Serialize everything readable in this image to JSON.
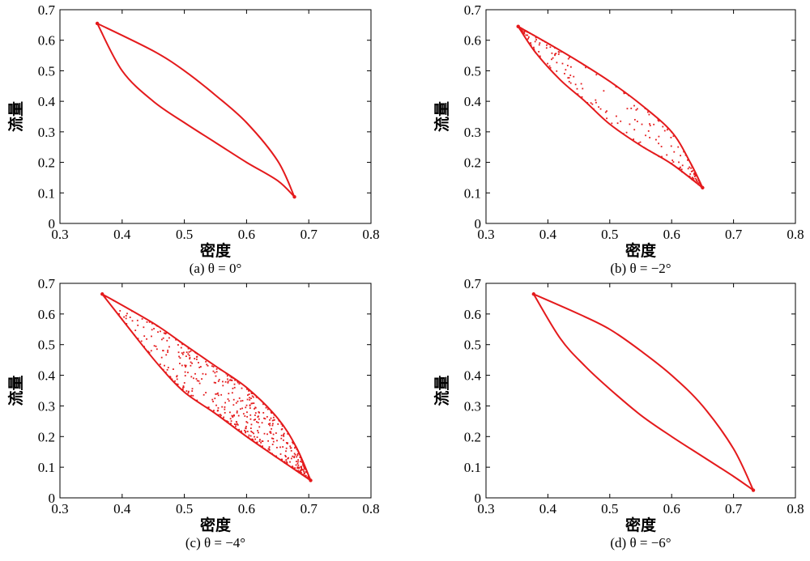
{
  "colors": {
    "series": "#e41a1c",
    "axis": "#000000",
    "background": "#ffffff"
  },
  "chart_data": [
    {
      "type": "scatter",
      "caption": "(a) θ = 0°",
      "xlabel": "密度",
      "ylabel": "流量",
      "xlim": [
        0.3,
        0.8
      ],
      "ylim": [
        0,
        0.7
      ],
      "xticks": [
        "0.3",
        "0.4",
        "0.5",
        "0.6",
        "0.7",
        "0.8"
      ],
      "yticks": [
        "0",
        "0.1",
        "0.2",
        "0.3",
        "0.4",
        "0.5",
        "0.6",
        "0.7"
      ],
      "grid": false,
      "shape": "closed lens-shaped loop",
      "loop": {
        "start": [
          0.36,
          0.655
        ],
        "end": [
          0.677,
          0.087
        ],
        "upper_branch": [
          [
            0.36,
            0.655
          ],
          [
            0.45,
            0.565
          ],
          [
            0.5,
            0.5
          ],
          [
            0.55,
            0.42
          ],
          [
            0.6,
            0.33
          ],
          [
            0.65,
            0.205
          ],
          [
            0.677,
            0.087
          ]
        ],
        "lower_branch": [
          [
            0.36,
            0.655
          ],
          [
            0.4,
            0.5
          ],
          [
            0.45,
            0.4
          ],
          [
            0.5,
            0.33
          ],
          [
            0.55,
            0.265
          ],
          [
            0.6,
            0.2
          ],
          [
            0.65,
            0.14
          ],
          [
            0.677,
            0.087
          ]
        ]
      },
      "interior_scatter": "none"
    },
    {
      "type": "scatter",
      "caption": "(b) θ = −2°",
      "xlabel": "密度",
      "ylabel": "流量",
      "xlim": [
        0.3,
        0.8
      ],
      "ylim": [
        0,
        0.7
      ],
      "xticks": [
        "0.3",
        "0.4",
        "0.5",
        "0.6",
        "0.7",
        "0.8"
      ],
      "yticks": [
        "0",
        "0.1",
        "0.2",
        "0.3",
        "0.4",
        "0.5",
        "0.6",
        "0.7"
      ],
      "grid": false,
      "shape": "closed lens-shaped loop",
      "loop": {
        "start": [
          0.352,
          0.645
        ],
        "end": [
          0.65,
          0.117
        ],
        "upper_branch": [
          [
            0.352,
            0.645
          ],
          [
            0.4,
            0.59
          ],
          [
            0.45,
            0.53
          ],
          [
            0.5,
            0.465
          ],
          [
            0.55,
            0.39
          ],
          [
            0.6,
            0.3
          ],
          [
            0.63,
            0.2
          ],
          [
            0.65,
            0.117
          ]
        ],
        "lower_branch": [
          [
            0.352,
            0.645
          ],
          [
            0.38,
            0.56
          ],
          [
            0.42,
            0.47
          ],
          [
            0.46,
            0.4
          ],
          [
            0.5,
            0.325
          ],
          [
            0.55,
            0.255
          ],
          [
            0.6,
            0.195
          ],
          [
            0.65,
            0.117
          ]
        ]
      },
      "interior_scatter": "moderate, denser near both ends"
    },
    {
      "type": "scatter",
      "caption": "(c) θ = −4°",
      "xlabel": "密度",
      "ylabel": "流量",
      "xlim": [
        0.3,
        0.8
      ],
      "ylim": [
        0,
        0.7
      ],
      "xticks": [
        "0.3",
        "0.4",
        "0.5",
        "0.6",
        "0.7",
        "0.8"
      ],
      "yticks": [
        "0",
        "0.1",
        "0.2",
        "0.3",
        "0.4",
        "0.5",
        "0.6",
        "0.7"
      ],
      "grid": false,
      "shape": "closed lens-shaped loop",
      "loop": {
        "start": [
          0.368,
          0.665
        ],
        "end": [
          0.703,
          0.057
        ],
        "upper_branch": [
          [
            0.368,
            0.665
          ],
          [
            0.45,
            0.57
          ],
          [
            0.5,
            0.5
          ],
          [
            0.55,
            0.43
          ],
          [
            0.6,
            0.36
          ],
          [
            0.65,
            0.26
          ],
          [
            0.68,
            0.165
          ],
          [
            0.703,
            0.057
          ]
        ],
        "lower_branch": [
          [
            0.368,
            0.665
          ],
          [
            0.42,
            0.53
          ],
          [
            0.46,
            0.43
          ],
          [
            0.5,
            0.345
          ],
          [
            0.55,
            0.275
          ],
          [
            0.6,
            0.2
          ],
          [
            0.65,
            0.13
          ],
          [
            0.703,
            0.057
          ]
        ]
      },
      "interior_scatter": "heavy, densest near the lower-right end"
    },
    {
      "type": "scatter",
      "caption": "(d) θ = −6°",
      "xlabel": "密度",
      "ylabel": "流量",
      "xlim": [
        0.3,
        0.8
      ],
      "ylim": [
        0,
        0.7
      ],
      "xticks": [
        "0.3",
        "0.4",
        "0.5",
        "0.6",
        "0.7",
        "0.8"
      ],
      "yticks": [
        "0",
        "0.1",
        "0.2",
        "0.3",
        "0.4",
        "0.5",
        "0.6",
        "0.7"
      ],
      "grid": false,
      "shape": "closed lens-shaped loop",
      "loop": {
        "start": [
          0.377,
          0.665
        ],
        "end": [
          0.732,
          0.025
        ],
        "upper_branch": [
          [
            0.377,
            0.665
          ],
          [
            0.45,
            0.6
          ],
          [
            0.5,
            0.55
          ],
          [
            0.55,
            0.48
          ],
          [
            0.6,
            0.4
          ],
          [
            0.65,
            0.3
          ],
          [
            0.7,
            0.16
          ],
          [
            0.732,
            0.025
          ]
        ],
        "lower_branch": [
          [
            0.377,
            0.665
          ],
          [
            0.42,
            0.52
          ],
          [
            0.46,
            0.43
          ],
          [
            0.5,
            0.355
          ],
          [
            0.55,
            0.27
          ],
          [
            0.6,
            0.2
          ],
          [
            0.65,
            0.135
          ],
          [
            0.7,
            0.07
          ],
          [
            0.732,
            0.025
          ]
        ]
      },
      "interior_scatter": "none"
    }
  ]
}
